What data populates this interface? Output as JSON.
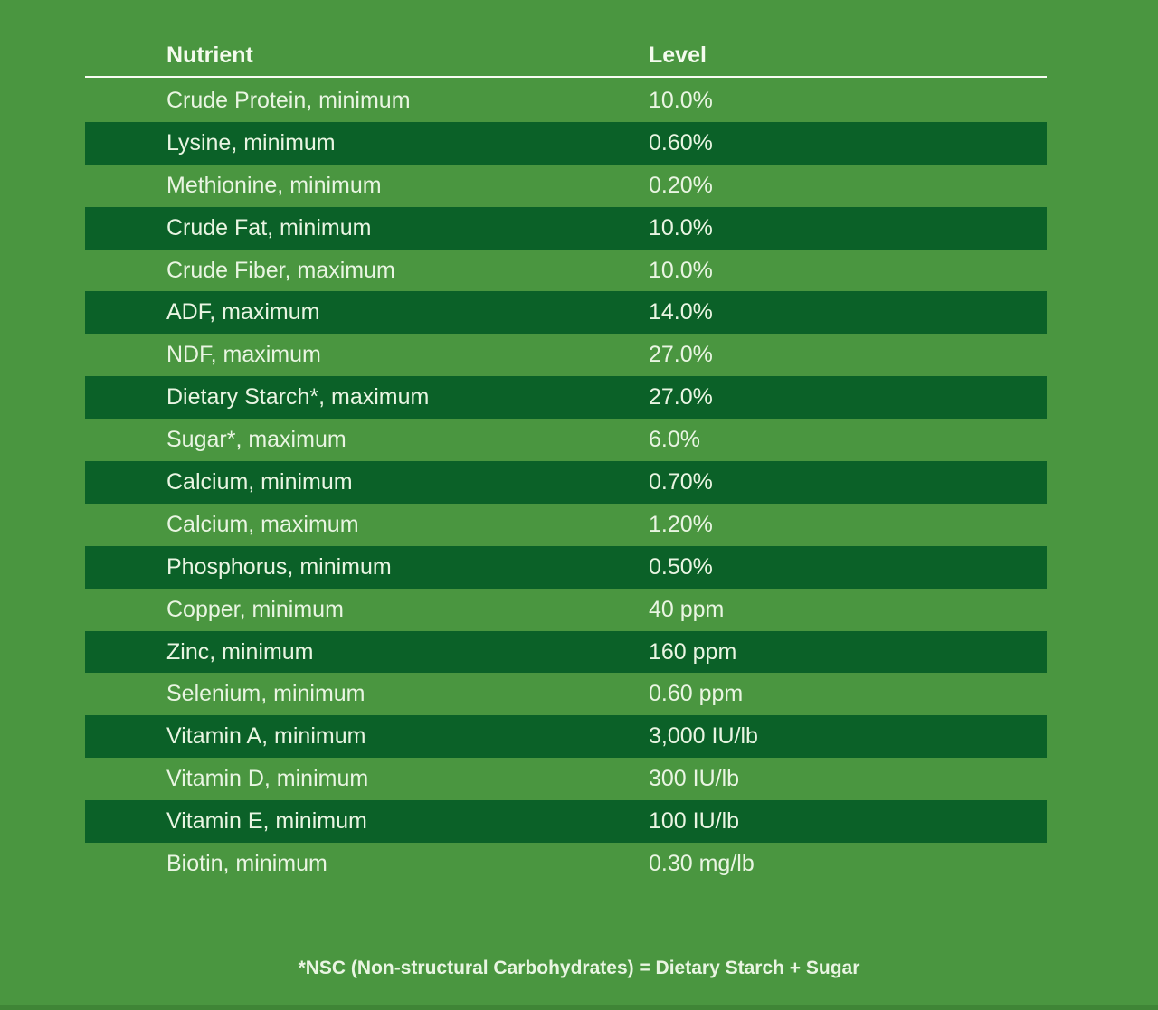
{
  "colors": {
    "background": "#4a9640",
    "stripe": "#0b6128",
    "row_text": "#e9f5e2",
    "heading_text": "#f4fbee",
    "divider": "#f8fcf3"
  },
  "table": {
    "columns": [
      "Nutrient",
      "Level"
    ],
    "rows": [
      {
        "nutrient": "Crude Protein, minimum",
        "level": "10.0%"
      },
      {
        "nutrient": "Lysine, minimum",
        "level": "0.60%"
      },
      {
        "nutrient": "Methionine, minimum",
        "level": "0.20%"
      },
      {
        "nutrient": "Crude Fat, minimum",
        "level": "10.0%"
      },
      {
        "nutrient": "Crude Fiber, maximum",
        "level": "10.0%"
      },
      {
        "nutrient": "ADF, maximum",
        "level": "14.0%"
      },
      {
        "nutrient": "NDF, maximum",
        "level": "27.0%"
      },
      {
        "nutrient": "Dietary Starch*, maximum",
        "level": "27.0%"
      },
      {
        "nutrient": "Sugar*, maximum",
        "level": "6.0%"
      },
      {
        "nutrient": "Calcium, minimum",
        "level": "0.70%"
      },
      {
        "nutrient": "Calcium, maximum",
        "level": "1.20%"
      },
      {
        "nutrient": "Phosphorus, minimum",
        "level": "0.50%"
      },
      {
        "nutrient": "Copper, minimum",
        "level": "40 ppm"
      },
      {
        "nutrient": "Zinc, minimum",
        "level": "160 ppm"
      },
      {
        "nutrient": "Selenium, minimum",
        "level": "0.60 ppm"
      },
      {
        "nutrient": "Vitamin A, minimum",
        "level": "3,000 IU/lb"
      },
      {
        "nutrient": "Vitamin D, minimum",
        "level": "300 IU/lb"
      },
      {
        "nutrient": "Vitamin E, minimum",
        "level": "100 IU/lb"
      },
      {
        "nutrient": "Biotin, minimum",
        "level": "0.30 mg/lb"
      }
    ]
  },
  "footnote": "*NSC (Non-structural Carbohydrates) = Dietary Starch + Sugar"
}
